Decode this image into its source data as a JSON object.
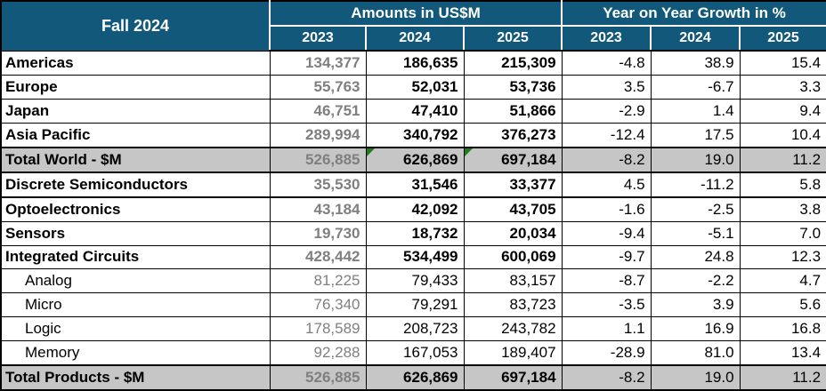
{
  "title": "Fall 2024",
  "header": {
    "title": "Fall 2024",
    "amounts_group_label": "Amounts in US$M",
    "growth_group_label": "Year on Year Growth in %",
    "amount_years": [
      "2023",
      "2024",
      "2025"
    ],
    "growth_years": [
      "2023",
      "2024",
      "2025"
    ]
  },
  "colors": {
    "header_bg": "#12587A",
    "header_text": "#FFFFFF",
    "total_row_bg": "#C6C6C6",
    "muted_value": "#7F7F7F",
    "value": "#000000",
    "comment_marker_green": "#1F7D1F",
    "grid": "#000000"
  },
  "chart_data": {
    "type": "table",
    "title": "Fall 2024",
    "column_groups": [
      "Amounts in US$M",
      "Year on Year Growth in %"
    ],
    "amount_columns": [
      "2023",
      "2024",
      "2025"
    ],
    "growth_columns": [
      "2023",
      "2024",
      "2025"
    ],
    "rows": [
      {
        "label": "Americas",
        "style": "main",
        "amounts": [
          "134,377",
          "186,635",
          "215,309"
        ],
        "growth": [
          "-4.8",
          "38.9",
          "15.4"
        ]
      },
      {
        "label": "Europe",
        "style": "main",
        "amounts": [
          "55,763",
          "52,031",
          "53,736"
        ],
        "growth": [
          "3.5",
          "-6.7",
          "3.3"
        ]
      },
      {
        "label": "Japan",
        "style": "main",
        "amounts": [
          "46,751",
          "47,410",
          "51,866"
        ],
        "growth": [
          "-2.9",
          "1.4",
          "9.4"
        ]
      },
      {
        "label": "Asia Pacific",
        "style": "main",
        "amounts": [
          "289,994",
          "340,792",
          "376,273"
        ],
        "growth": [
          "-12.4",
          "17.5",
          "10.4"
        ]
      },
      {
        "label": "Total World - $M",
        "style": "total",
        "amounts": [
          "526,885",
          "626,869",
          "697,184"
        ],
        "growth": [
          "-8.2",
          "19.0",
          "11.2"
        ],
        "comment_markers": [
          1,
          2
        ]
      },
      {
        "label": "Discrete Semiconductors",
        "style": "main",
        "separator_below": true,
        "amounts": [
          "35,530",
          "31,546",
          "33,377"
        ],
        "growth": [
          "4.5",
          "-11.2",
          "5.8"
        ]
      },
      {
        "label": "Optoelectronics",
        "style": "main",
        "amounts": [
          "43,184",
          "42,092",
          "43,705"
        ],
        "growth": [
          "-1.6",
          "-2.5",
          "3.8"
        ]
      },
      {
        "label": "Sensors",
        "style": "main",
        "amounts": [
          "19,730",
          "18,732",
          "20,034"
        ],
        "growth": [
          "-9.4",
          "-5.1",
          "7.0"
        ]
      },
      {
        "label": "Integrated Circuits",
        "style": "main",
        "amounts": [
          "428,442",
          "534,499",
          "600,069"
        ],
        "growth": [
          "-9.7",
          "24.8",
          "12.3"
        ]
      },
      {
        "label": "Analog",
        "style": "sub",
        "amounts": [
          "81,225",
          "79,433",
          "83,157"
        ],
        "growth": [
          "-8.7",
          "-2.2",
          "4.7"
        ]
      },
      {
        "label": "Micro",
        "style": "sub",
        "amounts": [
          "76,340",
          "79,291",
          "83,723"
        ],
        "growth": [
          "-3.5",
          "3.9",
          "5.6"
        ]
      },
      {
        "label": "Logic",
        "style": "sub",
        "amounts": [
          "178,589",
          "208,723",
          "243,782"
        ],
        "growth": [
          "1.1",
          "16.9",
          "16.8"
        ]
      },
      {
        "label": "Memory",
        "style": "sub",
        "amounts": [
          "92,288",
          "167,053",
          "189,407"
        ],
        "growth": [
          "-28.9",
          "81.0",
          "13.4"
        ]
      },
      {
        "label": "Total Products - $M",
        "style": "total",
        "amounts": [
          "526,885",
          "626,869",
          "697,184"
        ],
        "growth": [
          "-8.2",
          "19.0",
          "11.2"
        ]
      }
    ]
  }
}
